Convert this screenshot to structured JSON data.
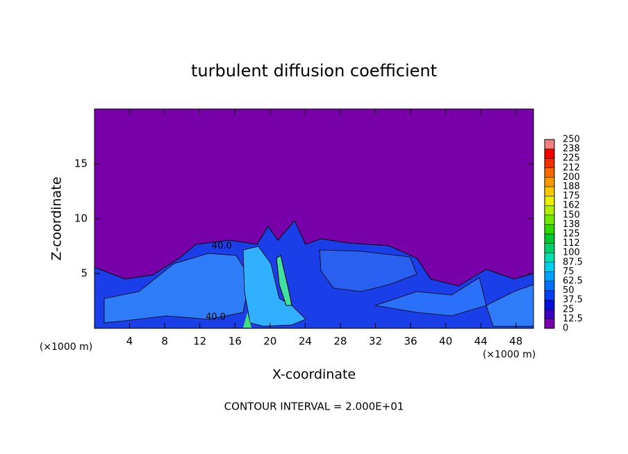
{
  "chart_data": {
    "type": "contour",
    "title": "turbulent diffusion coefficient",
    "x_label": "X-coordinate",
    "y_label": "Z-coordinate",
    "x_unit_left": "(×1000 m)",
    "x_unit_right": "(×1000 m)",
    "footer": "CONTOUR INTERVAL = 2.000E+01",
    "xlim": [
      0,
      50
    ],
    "ylim": [
      0,
      20
    ],
    "xticks": [
      4,
      8,
      12,
      16,
      20,
      24,
      28,
      32,
      36,
      40,
      44,
      48
    ],
    "yticks": [
      5,
      10,
      15
    ],
    "annotations": [
      {
        "text": "40.0",
        "x": 14.5,
        "y": 7.5
      },
      {
        "text": "40.0",
        "x": 13.8,
        "y": 1.0
      }
    ],
    "colorbar": {
      "ticks": [
        0,
        12.5,
        25,
        37.5,
        50,
        62.5,
        75,
        87.5,
        100,
        {
          "value": 112.5,
          "label": "112"
        },
        125,
        {
          "value": 137.5,
          "label": "138"
        },
        150,
        {
          "value": 162.5,
          "label": "162"
        },
        175,
        {
          "value": 187.5,
          "label": "188"
        },
        200,
        {
          "value": 212.5,
          "label": "212"
        },
        225,
        {
          "value": 237.5,
          "label": "238"
        },
        250
      ],
      "colors": [
        "#7800a8",
        "#3a00c0",
        "#0010d8",
        "#0040f0",
        "#0070ff",
        "#00a0ff",
        "#00d0f0",
        "#00e0b0",
        "#00d070",
        "#00c830",
        "#30d800",
        "#70e800",
        "#b0f000",
        "#e8f000",
        "#f8c800",
        "#f89800",
        "#f86800",
        "#f03000",
        "#f00000",
        "#f08080"
      ]
    }
  }
}
